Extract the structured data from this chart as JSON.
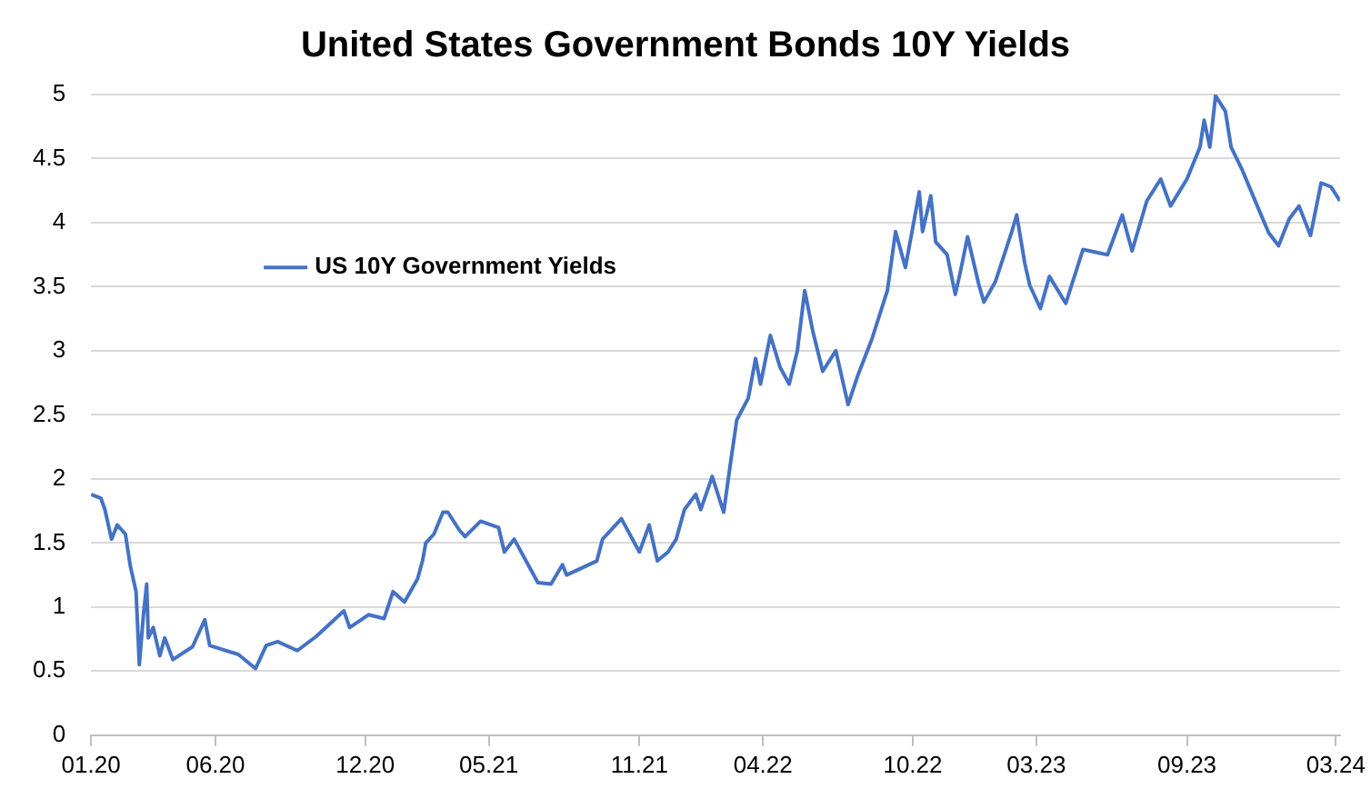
{
  "chart_data": {
    "type": "line",
    "title": "United States Government Bonds 10Y Yields",
    "x": [
      "2020-01-01",
      "2020-01-13",
      "2020-01-18",
      "2020-01-26",
      "2020-02-02",
      "2020-02-12",
      "2020-02-18",
      "2020-02-25",
      "2020-02-29",
      "2020-03-05",
      "2020-03-09",
      "2020-03-11",
      "2020-03-17",
      "2020-03-25",
      "2020-03-31",
      "2020-04-10",
      "2020-05-04",
      "2020-05-19",
      "2020-05-25",
      "2020-06-29",
      "2020-07-20",
      "2020-08-02",
      "2020-08-16",
      "2020-09-09",
      "2020-10-02",
      "2020-11-05",
      "2020-11-12",
      "2020-12-05",
      "2020-12-24",
      "2021-01-04",
      "2021-01-18",
      "2021-02-03",
      "2021-02-09",
      "2021-02-13",
      "2021-02-23",
      "2021-03-06",
      "2021-03-12",
      "2021-03-26",
      "2021-04-02",
      "2021-04-21",
      "2021-05-13",
      "2021-05-20",
      "2021-06-01",
      "2021-06-30",
      "2021-07-16",
      "2021-07-30",
      "2021-08-04",
      "2021-09-10",
      "2021-09-17",
      "2021-10-10",
      "2021-11-01",
      "2021-11-13",
      "2021-11-23",
      "2021-12-06",
      "2021-12-16",
      "2021-12-26",
      "2022-01-09",
      "2022-01-15",
      "2022-01-29",
      "2022-02-12",
      "2022-02-20",
      "2022-02-28",
      "2022-03-14",
      "2022-03-23",
      "2022-03-29",
      "2022-04-10",
      "2022-04-22",
      "2022-05-03",
      "2022-05-13",
      "2022-05-22",
      "2022-06-01",
      "2022-06-13",
      "2022-06-29",
      "2022-07-14",
      "2022-07-26",
      "2022-08-12",
      "2022-08-31",
      "2022-09-10",
      "2022-09-22",
      "2022-10-03",
      "2022-10-09",
      "2022-10-13",
      "2022-10-23",
      "2022-10-29",
      "2022-11-12",
      "2022-11-22",
      "2022-11-28",
      "2022-12-07",
      "2022-12-21",
      "2022-12-27",
      "2023-01-10",
      "2023-01-30",
      "2023-02-05",
      "2023-02-15",
      "2023-02-21",
      "2023-03-06",
      "2023-03-17",
      "2023-04-06",
      "2023-04-27",
      "2023-05-27",
      "2023-06-14",
      "2023-06-26",
      "2023-07-14",
      "2023-07-31",
      "2023-08-12",
      "2023-09-01",
      "2023-09-17",
      "2023-09-22",
      "2023-09-29",
      "2023-10-06",
      "2023-10-18",
      "2023-10-25",
      "2023-11-07",
      "2023-11-28",
      "2023-12-10",
      "2023-12-22",
      "2024-01-04",
      "2024-01-16",
      "2024-01-30",
      "2024-02-12",
      "2024-02-24",
      "2024-03-06"
    ],
    "series": [
      {
        "name": "US 10Y Government Yields",
        "color": "#4472c4",
        "values": [
          1.88,
          1.85,
          1.76,
          1.53,
          1.64,
          1.57,
          1.32,
          1.12,
          0.55,
          0.94,
          1.18,
          0.76,
          0.84,
          0.62,
          0.76,
          0.59,
          0.69,
          0.9,
          0.7,
          0.63,
          0.52,
          0.7,
          0.73,
          0.66,
          0.77,
          0.97,
          0.84,
          0.94,
          0.91,
          1.12,
          1.04,
          1.22,
          1.36,
          1.5,
          1.57,
          1.74,
          1.74,
          1.6,
          1.55,
          1.67,
          1.62,
          1.43,
          1.53,
          1.19,
          1.18,
          1.33,
          1.25,
          1.36,
          1.53,
          1.69,
          1.43,
          1.64,
          1.36,
          1.43,
          1.53,
          1.76,
          1.88,
          1.76,
          2.02,
          1.74,
          2.11,
          2.46,
          2.63,
          2.94,
          2.74,
          3.12,
          2.87,
          2.74,
          3.0,
          3.47,
          3.15,
          2.84,
          3.0,
          2.58,
          2.81,
          3.09,
          3.47,
          3.93,
          3.65,
          4.03,
          4.24,
          3.93,
          4.21,
          3.85,
          3.75,
          3.44,
          3.61,
          3.89,
          3.51,
          3.38,
          3.54,
          3.93,
          4.06,
          3.68,
          3.51,
          3.33,
          3.58,
          3.37,
          3.79,
          3.75,
          4.06,
          3.78,
          4.17,
          4.34,
          4.13,
          4.34,
          4.59,
          4.8,
          4.59,
          4.99,
          4.87,
          4.59,
          4.42,
          4.1,
          3.92,
          3.82,
          4.03,
          4.13,
          3.9,
          4.31,
          4.28,
          4.17
        ]
      }
    ],
    "xlim": [
      "2020-01-01",
      "2024-03-06"
    ],
    "xticks": [
      {
        "value": "2020-01-01",
        "label": "01.20"
      },
      {
        "value": "2020-06-01",
        "label": "06.20"
      },
      {
        "value": "2020-12-01",
        "label": "12.20"
      },
      {
        "value": "2021-05-01",
        "label": "05.21"
      },
      {
        "value": "2021-11-01",
        "label": "11.21"
      },
      {
        "value": "2022-04-01",
        "label": "04.22"
      },
      {
        "value": "2022-10-01",
        "label": "10.22"
      },
      {
        "value": "2023-03-01",
        "label": "03.23"
      },
      {
        "value": "2023-09-01",
        "label": "09.23"
      },
      {
        "value": "2024-03-01",
        "label": "03.24"
      }
    ],
    "ylim": [
      0,
      5
    ],
    "yticks": [
      0,
      0.5,
      1,
      1.5,
      2,
      2.5,
      3,
      3.5,
      4,
      4.5,
      5
    ],
    "grid": "y",
    "legend": "left",
    "marker": "none",
    "line_style": "solid"
  }
}
